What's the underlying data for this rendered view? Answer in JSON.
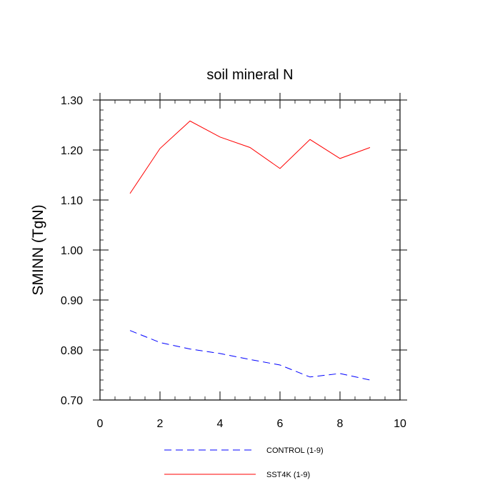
{
  "chart_data": {
    "type": "line",
    "title": "soil mineral N",
    "xlabel": "",
    "ylabel": "SMINN  (TgN)",
    "xlim": [
      0,
      10
    ],
    "ylim": [
      0.7,
      1.3
    ],
    "x_ticks": [
      0,
      2,
      4,
      6,
      8,
      10
    ],
    "x_tick_labels": [
      "0",
      "2",
      "4",
      "6",
      "8",
      "10"
    ],
    "y_ticks": [
      0.7,
      0.8,
      0.9,
      1.0,
      1.1,
      1.2,
      1.3
    ],
    "y_tick_labels": [
      "0.70",
      "0.80",
      "0.90",
      "1.00",
      "1.10",
      "1.20",
      "1.30"
    ],
    "grid": false,
    "legend_position": "bottom-center",
    "x": [
      1,
      2,
      3,
      4,
      5,
      6,
      7,
      8,
      9
    ],
    "series": [
      {
        "name": "CONTROL (1-9)",
        "color": "#0000ff",
        "dash": "dashed",
        "values": [
          0.839,
          0.815,
          0.802,
          0.793,
          0.781,
          0.77,
          0.746,
          0.753,
          0.74
        ]
      },
      {
        "name": "SST4K (1-9)",
        "color": "#ff0000",
        "dash": "solid",
        "values": [
          1.113,
          1.203,
          1.258,
          1.226,
          1.205,
          1.163,
          1.221,
          1.183,
          1.205
        ]
      }
    ]
  }
}
